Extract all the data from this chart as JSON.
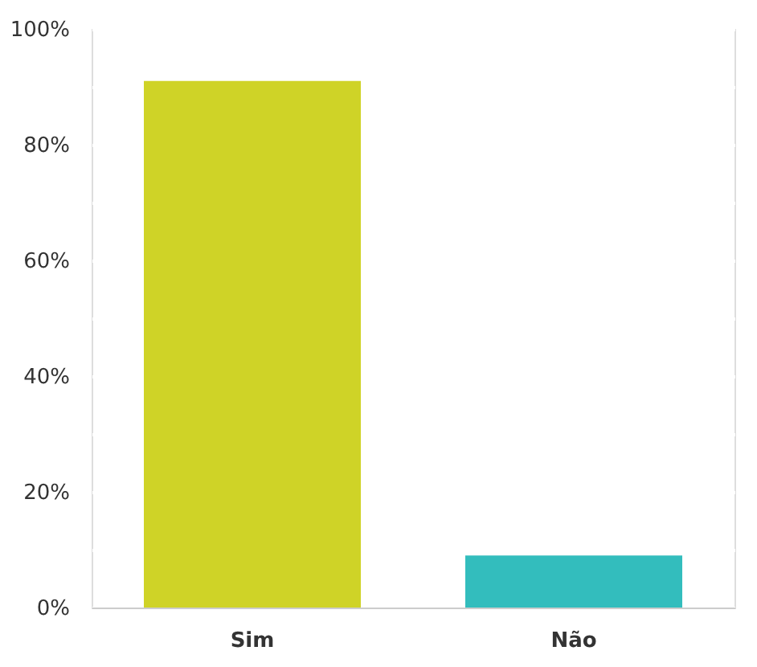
{
  "chart_data": {
    "type": "bar",
    "categories": [
      "Sim",
      "Não"
    ],
    "values": [
      91,
      9
    ],
    "colors": [
      "#cfd327",
      "#33bdbd"
    ],
    "ylim": [
      0,
      100
    ],
    "yticks": [
      {
        "value": 0,
        "label": "0%"
      },
      {
        "value": 10,
        "label": null
      },
      {
        "value": 20,
        "label": "20%"
      },
      {
        "value": 30,
        "label": null
      },
      {
        "value": 40,
        "label": "40%"
      },
      {
        "value": 50,
        "label": null
      },
      {
        "value": 60,
        "label": "60%"
      },
      {
        "value": 70,
        "label": null
      },
      {
        "value": 80,
        "label": "80%"
      },
      {
        "value": 90,
        "label": null
      },
      {
        "value": 100,
        "label": "100%"
      }
    ],
    "grid": "y"
  }
}
